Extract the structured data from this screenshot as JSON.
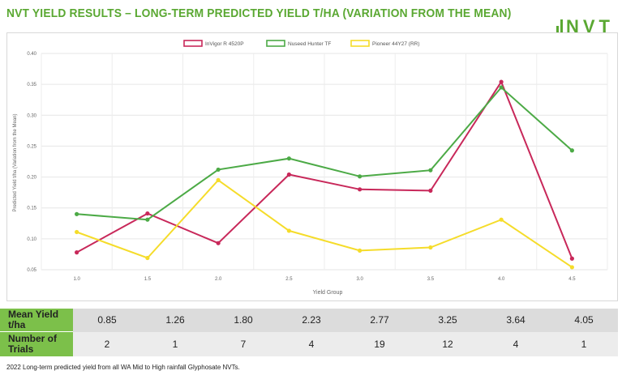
{
  "header": {
    "title": "NVT YIELD RESULTS – LONG-TERM PREDICTED YIELD T/HA (VARIATION FROM THE MEAN)",
    "logo_text": "NVT"
  },
  "chart_data": {
    "type": "line",
    "title": "",
    "xlabel": "Yield Group",
    "ylabel": "Predicted Yield t/ha (Variation from the Mean)",
    "x": [
      1.0,
      1.5,
      2.0,
      2.5,
      3.0,
      3.5,
      4.0,
      4.5
    ],
    "x_tick_labels": [
      "1.0",
      "1.5",
      "2.0",
      "2.5",
      "3.0",
      "3.5",
      "4.0",
      "4.5"
    ],
    "ylim": [
      0.05,
      0.4
    ],
    "y_tick_labels": [
      "0.05",
      "0.10",
      "0.15",
      "0.20",
      "0.25",
      "0.30",
      "0.35",
      "0.40"
    ],
    "grid": true,
    "legend_position": "top-center",
    "series": [
      {
        "name": "InVigor R 4520P",
        "color": "#c8285a",
        "values": [
          0.078,
          0.141,
          0.093,
          0.204,
          0.18,
          0.178,
          0.354,
          0.068
        ]
      },
      {
        "name": "Nuseed Hunter TF",
        "color": "#4caa46",
        "values": [
          0.14,
          0.131,
          0.212,
          0.23,
          0.201,
          0.211,
          0.345,
          0.243
        ]
      },
      {
        "name": "Pioneer 44Y27 (RR)",
        "color": "#f5dc2a",
        "values": [
          0.111,
          0.069,
          0.195,
          0.113,
          0.081,
          0.086,
          0.131,
          0.054
        ]
      }
    ]
  },
  "table": {
    "mean_yield_label": "Mean Yield t/ha",
    "mean_yield": [
      "0.85",
      "1.26",
      "1.80",
      "2.23",
      "2.77",
      "3.25",
      "3.64",
      "4.05"
    ],
    "trials_label": "Number of Trials",
    "trials": [
      "2",
      "1",
      "7",
      "4",
      "19",
      "12",
      "4",
      "1"
    ]
  },
  "footnote": "2022 Long-term predicted yield from all WA Mid to High rainfall Glyphosate NVTs."
}
